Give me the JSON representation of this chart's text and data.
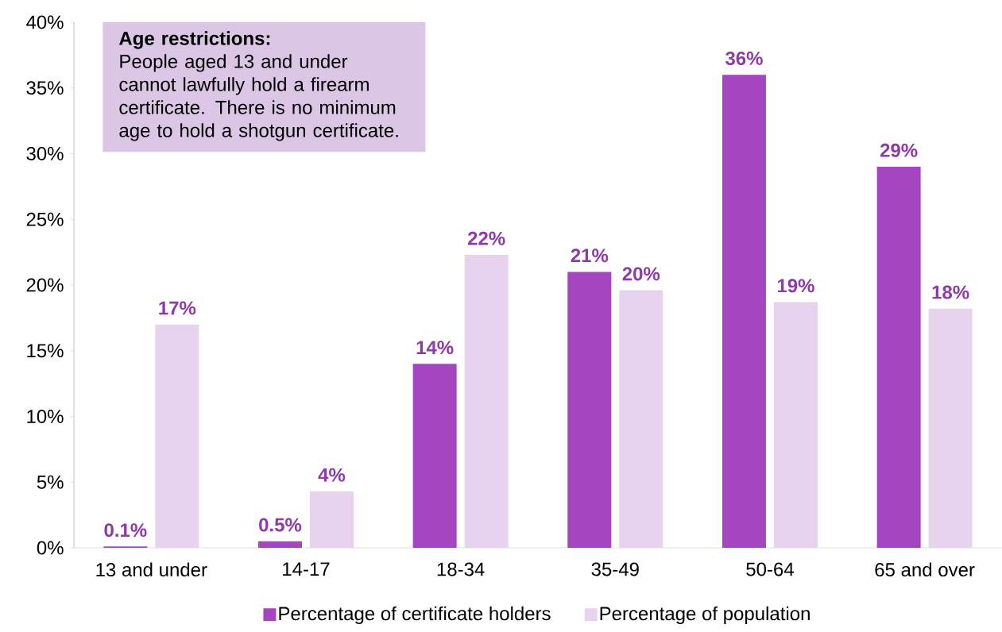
{
  "chart_data": {
    "type": "bar",
    "categories": [
      "13 and under",
      "14-17",
      "18-34",
      "35-49",
      "50-64",
      "65 and over"
    ],
    "series": [
      {
        "name": "Percentage of certificate holders",
        "color": "#a346c0",
        "values": [
          0.1,
          0.5,
          14,
          21,
          36,
          29
        ],
        "value_labels": [
          "0.1%",
          "0.5%",
          "14%",
          "21%",
          "36%",
          "29%"
        ]
      },
      {
        "name": "Percentage of population",
        "color": "#e8d3ef",
        "values": [
          17,
          4.3,
          22.3,
          19.6,
          18.7,
          18.2
        ],
        "value_labels": [
          "17%",
          "4%",
          "22%",
          "20%",
          "19%",
          "18%"
        ]
      }
    ],
    "ylim": [
      0,
      40
    ],
    "yticks": [
      {
        "value": 0,
        "label": "0%"
      },
      {
        "value": 5,
        "label": "5%"
      },
      {
        "value": 10,
        "label": "10%"
      },
      {
        "value": 15,
        "label": "15%"
      },
      {
        "value": 20,
        "label": "20%"
      },
      {
        "value": 25,
        "label": "25%"
      },
      {
        "value": 30,
        "label": "30%"
      },
      {
        "value": 35,
        "label": "35%"
      },
      {
        "value": 40,
        "label": "40%"
      }
    ],
    "annotations": [
      "Age restrictions:",
      "People aged 13 and under cannot lawfully hold a firearm certificate. There is no minimum age to hold a shotgun certificate."
    ],
    "grid": false,
    "legend": "bottom"
  }
}
